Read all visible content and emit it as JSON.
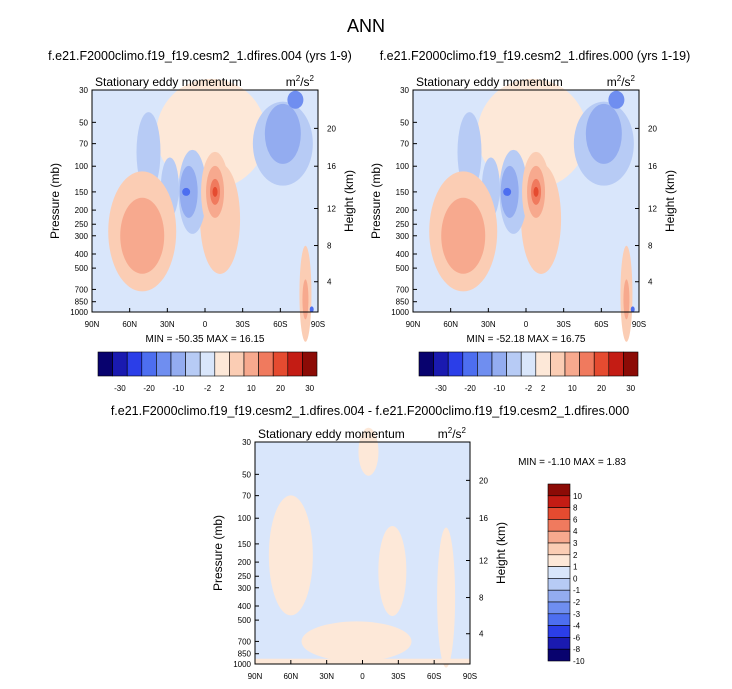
{
  "figure": {
    "title": "ANN"
  },
  "colors": {
    "palette": [
      "#08026e",
      "#1a1ab0",
      "#2b3ee8",
      "#4d6ef0",
      "#6f8ef0",
      "#93acf0",
      "#b7cbf5",
      "#d9e6fb",
      "#fde8d8",
      "#fbcdb4",
      "#f7a98e",
      "#f07a5e",
      "#e54b30",
      "#c41c14",
      "#8c0b06"
    ],
    "background_fill": "#d9e6fb"
  },
  "chart_data": [
    {
      "id": "panel-1",
      "type": "heatmap",
      "title": "f.e21.F2000climo.f19_f19.cesm2_1.dfires.004 (yrs 1-9)",
      "subtitle_left": "Stationary eddy momentum",
      "units": "m²/s²",
      "units_base": "m",
      "units_exp1": "2",
      "units_mid": "/s",
      "units_exp2": "2",
      "ylabel": "Pressure (mb)",
      "ylabel_right": "Height (km)",
      "x_ticks": [
        "90N",
        "60N",
        "30N",
        "0",
        "30S",
        "60S",
        "90S"
      ],
      "y_ticks": [
        "30",
        "50",
        "70",
        "100",
        "150",
        "200",
        "250",
        "300",
        "400",
        "500",
        "700",
        "850",
        "1000"
      ],
      "y_right_ticks": [
        "20",
        "16",
        "12",
        "8",
        "4"
      ],
      "stats": "MIN = -50.35  MAX = 16.15",
      "min": -50.35,
      "max": 16.15,
      "colorbar_labels": [
        "-30",
        "-20",
        "-10",
        "-2",
        "2",
        "10",
        "20",
        "30"
      ]
    },
    {
      "id": "panel-2",
      "type": "heatmap",
      "title": "f.e21.F2000climo.f19_f19.cesm2_1.dfires.000 (yrs 1-19)",
      "subtitle_left": "Stationary eddy momentum",
      "units": "m²/s²",
      "units_base": "m",
      "units_exp1": "2",
      "units_mid": "/s",
      "units_exp2": "2",
      "ylabel": "Pressure (mb)",
      "ylabel_right": "Height (km)",
      "x_ticks": [
        "90N",
        "60N",
        "30N",
        "0",
        "30S",
        "60S",
        "90S"
      ],
      "y_ticks": [
        "30",
        "50",
        "70",
        "100",
        "150",
        "200",
        "250",
        "300",
        "400",
        "500",
        "700",
        "850",
        "1000"
      ],
      "y_right_ticks": [
        "20",
        "16",
        "12",
        "8",
        "4"
      ],
      "stats": "MIN = -52.18  MAX = 16.75",
      "min": -52.18,
      "max": 16.75,
      "colorbar_labels": [
        "-30",
        "-20",
        "-10",
        "-2",
        "2",
        "10",
        "20",
        "30"
      ]
    },
    {
      "id": "panel-diff",
      "type": "heatmap",
      "title": "f.e21.F2000climo.f19_f19.cesm2_1.dfires.004 - f.e21.F2000climo.f19_f19.cesm2_1.dfires.000",
      "subtitle_left": "Stationary eddy momentum",
      "units": "m²/s²",
      "units_base": "m",
      "units_exp1": "2",
      "units_mid": "/s",
      "units_exp2": "2",
      "ylabel": "Pressure (mb)",
      "ylabel_right": "Height (km)",
      "x_ticks": [
        "90N",
        "60N",
        "30N",
        "0",
        "30S",
        "60S",
        "90S"
      ],
      "y_ticks": [
        "30",
        "50",
        "70",
        "100",
        "150",
        "200",
        "250",
        "300",
        "400",
        "500",
        "700",
        "850",
        "1000"
      ],
      "y_right_ticks": [
        "20",
        "16",
        "12",
        "8",
        "4"
      ],
      "stats": "MIN = -1.10  MAX =  1.83",
      "min": -1.1,
      "max": 1.83,
      "colorbar_labels": [
        "10",
        "8",
        "6",
        "4",
        "3",
        "2",
        "1",
        "0",
        "-1",
        "-2",
        "-3",
        "-4",
        "-6",
        "-8",
        "-10"
      ]
    }
  ]
}
